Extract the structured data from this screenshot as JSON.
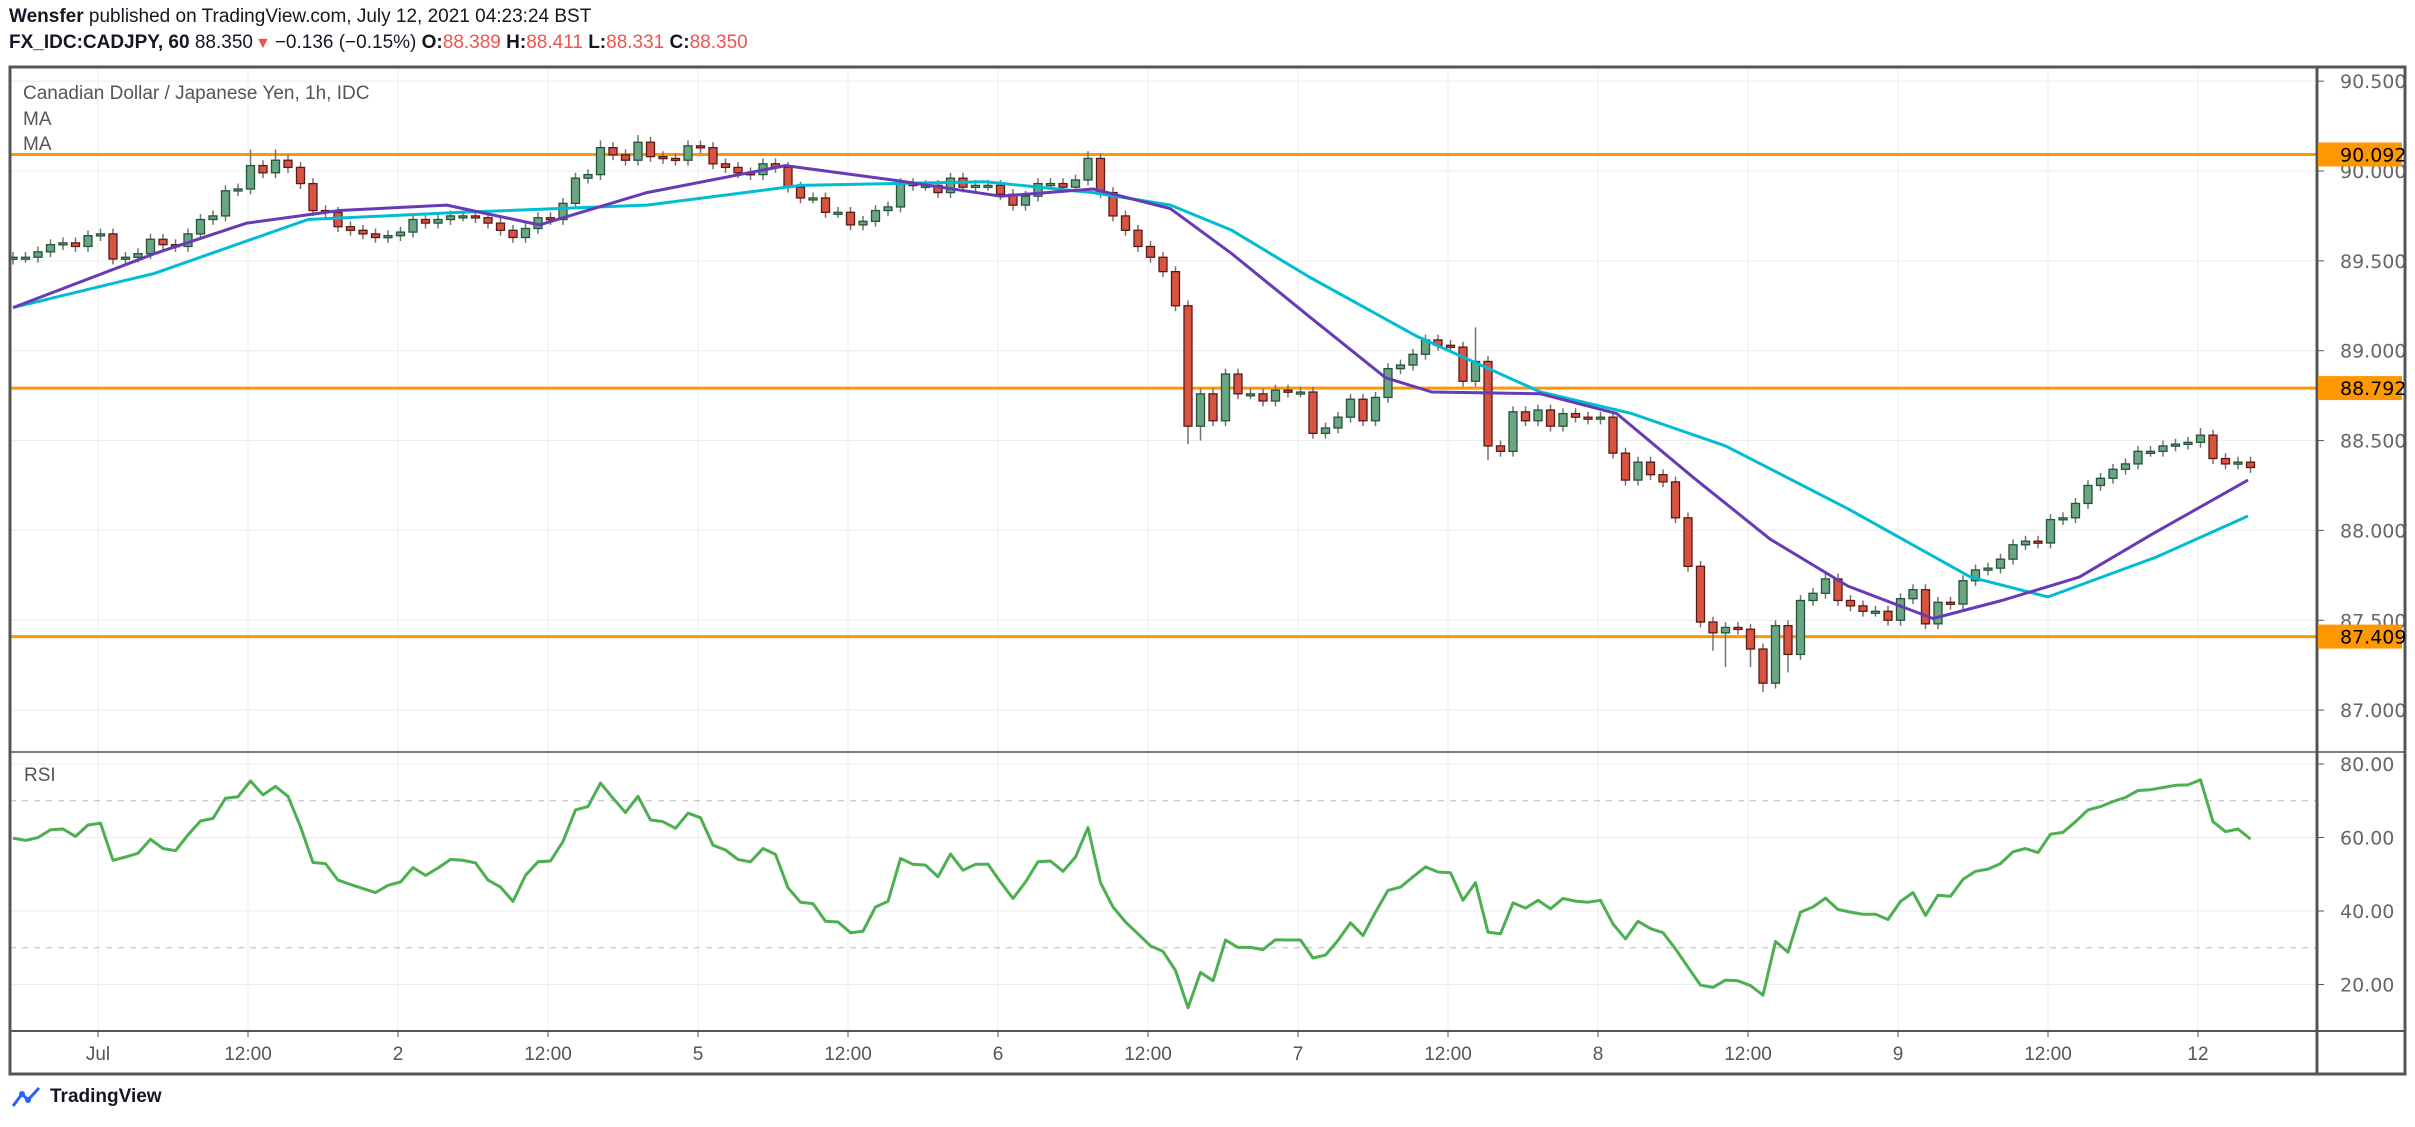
{
  "header": {
    "publisher": "Wensfer",
    "published_text": "published on TradingView.com, July 12, 2021 04:23:24 BST",
    "symbol": "FX_IDC:CADJPY, 60",
    "last": "88.350",
    "change": "−0.136 (−0.15%)",
    "direction_icon": "triangle-down-icon",
    "ohlc": [
      {
        "label": "O:",
        "value": "88.389"
      },
      {
        "label": "H:",
        "value": "88.411"
      },
      {
        "label": "L:",
        "value": "88.331"
      },
      {
        "label": "C:",
        "value": "88.350"
      }
    ]
  },
  "legend": {
    "title": "Canadian Dollar / Japanese Yen, 1h, IDC",
    "ma1": "MA",
    "ma2": "MA",
    "rsi": "RSI"
  },
  "footer": {
    "brand": "TradingView",
    "logo_icon": "tradingview-logo-icon"
  },
  "colors": {
    "up": "#6ba583",
    "up_border": "#225437",
    "down": "#d75442",
    "down_border": "#5b1a13",
    "wick": "#737375",
    "ma_fast": "#673ab7",
    "ma_slow": "#00bcd4",
    "rsi": "#4caf50",
    "level": "#ff9800"
  },
  "chart_data": {
    "type": "candlestick",
    "title": "Canadian Dollar / Japanese Yen, 1h, IDC",
    "price_axis": {
      "ticks": [
        "90.500",
        "90.000",
        "89.500",
        "89.000",
        "88.500",
        "88.000",
        "87.500",
        "87.000"
      ],
      "range": [
        86.8,
        90.6
      ]
    },
    "time_axis": {
      "ticks": [
        "Jul",
        "12:00",
        "2",
        "12:00",
        "5",
        "12:00",
        "6",
        "12:00",
        "7",
        "12:00",
        "8",
        "12:00",
        "9",
        "12:00",
        "12"
      ]
    },
    "levels": [
      {
        "value": 90.092,
        "label": "90.092"
      },
      {
        "value": 88.792,
        "label": "88.792"
      },
      {
        "value": 87.409,
        "label": "87.409"
      }
    ],
    "first_open": 89.51,
    "close": [
      89.52,
      89.52,
      89.55,
      89.59,
      89.6,
      89.58,
      89.64,
      89.65,
      89.51,
      89.52,
      89.54,
      89.62,
      89.59,
      89.58,
      89.65,
      89.73,
      89.75,
      89.89,
      89.9,
      90.03,
      89.99,
      90.06,
      90.02,
      89.93,
      89.78,
      89.77,
      89.69,
      89.67,
      89.65,
      89.63,
      89.64,
      89.66,
      89.73,
      89.71,
      89.73,
      89.75,
      89.75,
      89.74,
      89.71,
      89.67,
      89.63,
      89.68,
      89.74,
      89.73,
      89.82,
      89.96,
      89.98,
      90.13,
      90.09,
      90.06,
      90.16,
      90.08,
      90.07,
      90.06,
      90.14,
      90.13,
      90.04,
      90.02,
      89.99,
      89.98,
      90.04,
      90.02,
      89.91,
      89.85,
      89.85,
      89.77,
      89.77,
      89.7,
      89.72,
      89.78,
      89.8,
      89.93,
      89.92,
      89.92,
      89.88,
      89.96,
      89.91,
      89.92,
      89.92,
      89.87,
      89.81,
      89.86,
      89.93,
      89.93,
      89.91,
      89.95,
      90.07,
      89.88,
      89.75,
      89.67,
      89.58,
      89.52,
      89.44,
      89.25,
      88.58,
      88.76,
      88.61,
      88.87,
      88.76,
      88.76,
      88.72,
      88.78,
      88.77,
      88.77,
      88.54,
      88.57,
      88.63,
      88.73,
      88.61,
      88.74,
      88.9,
      88.92,
      88.98,
      89.06,
      89.03,
      89.02,
      88.83,
      88.94,
      88.47,
      88.44,
      88.66,
      88.61,
      88.67,
      88.58,
      88.65,
      88.63,
      88.62,
      88.63,
      88.43,
      88.28,
      88.38,
      88.31,
      88.27,
      88.07,
      87.8,
      87.49,
      87.43,
      87.46,
      87.45,
      87.34,
      87.15,
      87.47,
      87.31,
      87.61,
      87.65,
      87.73,
      87.61,
      87.58,
      87.55,
      87.55,
      87.5,
      87.62,
      87.67,
      87.48,
      87.6,
      87.59,
      87.72,
      87.78,
      87.79,
      87.84,
      87.92,
      87.94,
      87.93,
      88.06,
      88.07,
      88.15,
      88.25,
      88.29,
      88.34,
      88.37,
      88.44,
      88.44,
      88.47,
      88.48,
      88.49,
      88.53,
      88.4,
      88.37,
      88.38,
      88.35
    ],
    "high_overrides": {
      "19": 90.12,
      "21": 90.12,
      "47": 90.17,
      "50": 90.2,
      "86": 90.11,
      "117": 89.13,
      "175": 88.57
    },
    "low_overrides": {
      "94": 88.48,
      "95": 88.5,
      "118": 88.39,
      "136": 87.33,
      "137": 87.24,
      "139": 87.24,
      "140": 87.1,
      "141": 87.12,
      "142": 87.21
    },
    "ma_fast": [
      [
        0,
        89.24
      ],
      [
        11.3,
        89.54
      ],
      [
        18.7,
        89.71
      ],
      [
        26.1,
        89.78
      ],
      [
        34.7,
        89.81
      ],
      [
        42.1,
        89.7
      ],
      [
        50.7,
        89.88
      ],
      [
        61.8,
        90.03
      ],
      [
        70.4,
        89.95
      ],
      [
        79,
        89.86
      ],
      [
        86.4,
        89.9
      ],
      [
        92.6,
        89.79
      ],
      [
        97.5,
        89.54
      ],
      [
        103.7,
        89.19
      ],
      [
        109.8,
        88.85
      ],
      [
        113.5,
        88.77
      ],
      [
        122.2,
        88.76
      ],
      [
        128.3,
        88.65
      ],
      [
        134.5,
        88.29
      ],
      [
        140.6,
        87.95
      ],
      [
        146.8,
        87.69
      ],
      [
        153.6,
        87.51
      ],
      [
        159.1,
        87.61
      ],
      [
        165.3,
        87.74
      ],
      [
        171.4,
        87.99
      ],
      [
        178.8,
        88.28
      ]
    ],
    "ma_slow": [
      [
        0,
        89.24
      ],
      [
        11.3,
        89.43
      ],
      [
        23.6,
        89.73
      ],
      [
        35.9,
        89.77
      ],
      [
        50.7,
        89.81
      ],
      [
        63,
        89.92
      ],
      [
        77.8,
        89.94
      ],
      [
        86.4,
        89.88
      ],
      [
        92.6,
        89.81
      ],
      [
        97.5,
        89.67
      ],
      [
        103.7,
        89.41
      ],
      [
        112.3,
        89.08
      ],
      [
        122.2,
        88.77
      ],
      [
        129.5,
        88.65
      ],
      [
        137,
        88.47
      ],
      [
        146.8,
        88.12
      ],
      [
        156.6,
        87.74
      ],
      [
        162.8,
        87.63
      ],
      [
        171.4,
        87.85
      ],
      [
        178.8,
        88.08
      ]
    ],
    "rsi": {
      "label": "RSI",
      "ticks": [
        "80.00",
        "60.00",
        "40.00",
        "20.00"
      ],
      "bands": [
        70,
        30
      ],
      "values": [
        59.8,
        59.2,
        60,
        62.1,
        62.3,
        60.3,
        63.4,
        63.9,
        53.8,
        54.7,
        55.7,
        59.5,
        57,
        56.4,
        60.7,
        64.5,
        65.2,
        70.7,
        71.1,
        75.4,
        71.6,
        73.9,
        71.2,
        62.9,
        53.2,
        52.9,
        48.4,
        47.2,
        46.1,
        45,
        47,
        47.9,
        51.8,
        49.7,
        51.7,
        54,
        53.8,
        53.1,
        48.4,
        46.5,
        42.6,
        49.7,
        53.4,
        53.6,
        58.9,
        67.5,
        68.4,
        74.8,
        70.7,
        66.8,
        71.2,
        64.8,
        64.3,
        62.5,
        66.6,
        65.4,
        57.9,
        56.6,
        54,
        53.4,
        57,
        55.4,
        46.3,
        42.4,
        42,
        37.2,
        37,
        34.1,
        34.5,
        41.1,
        42.6,
        54.3,
        52.7,
        52.5,
        49.3,
        55.5,
        51.1,
        52.7,
        52.7,
        47.9,
        43.4,
        47.9,
        53.4,
        53.6,
        50.8,
        54.7,
        62.7,
        47.7,
        41.1,
        37,
        33.8,
        30.5,
        29,
        23.8,
        13.7,
        23.3,
        21,
        32.1,
        30.1,
        30.1,
        29.5,
        32.2,
        32.1,
        32.1,
        27.2,
        28,
        32,
        36.8,
        33.3,
        39.7,
        45.6,
        46.5,
        49.3,
        52,
        50.6,
        50.4,
        42.9,
        47.7,
        34.2,
        33.8,
        42.2,
        40.8,
        42.9,
        40.6,
        43.4,
        42.7,
        42.4,
        42.9,
        36.5,
        32.4,
        37.2,
        35.2,
        34.1,
        29.7,
        24.7,
        19.8,
        19.2,
        21.2,
        21,
        19.7,
        17.1,
        31.7,
        28.8,
        39.7,
        41.1,
        43.5,
        40.4,
        39.7,
        39.1,
        39.1,
        37.7,
        42.6,
        45,
        38.8,
        44.3,
        44,
        48.6,
        50.8,
        51.4,
        52.9,
        56.1,
        57,
        55.9,
        60.9,
        61.4,
        64.3,
        67.5,
        68.4,
        69.8,
        70.9,
        72.8,
        73,
        73.6,
        74.2,
        74.3,
        75.7,
        64.3,
        61.6,
        62.3,
        59.6
      ]
    }
  }
}
